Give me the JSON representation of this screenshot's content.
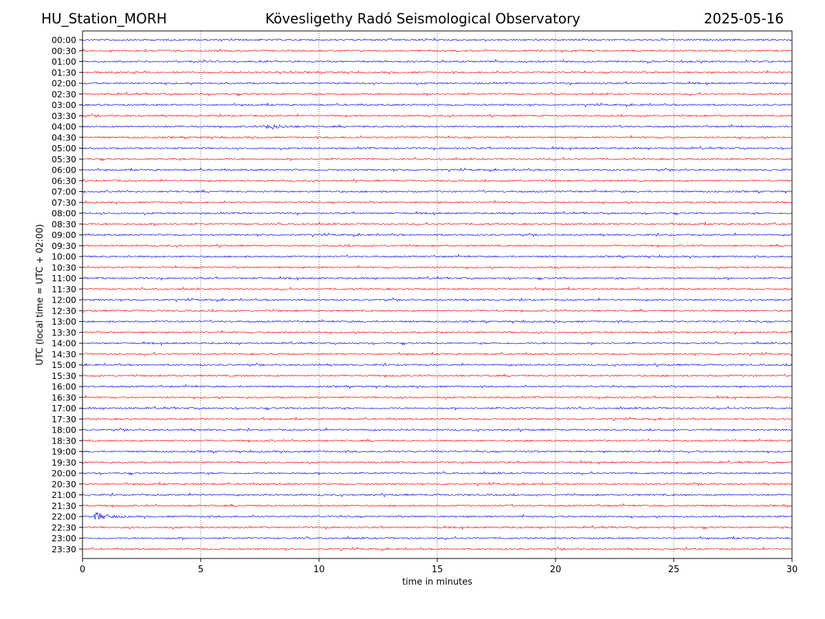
{
  "header": {
    "station": "HU_Station_MORH",
    "observatory": "Kövesligethy Radó Seismological Observatory",
    "date": "2025-05-16"
  },
  "chart_data": {
    "type": "line",
    "title": "Kövesligethy Radó Seismological Observatory",
    "xlabel": "time in minutes",
    "ylabel": "UTC (local time = UTC + 02:00)",
    "xlim": [
      0,
      30
    ],
    "x_ticks": [
      0,
      5,
      10,
      15,
      20,
      25,
      30
    ],
    "grid": "vertical dotted lines at x ticks",
    "row_labels": [
      "00:00",
      "00:30",
      "01:00",
      "01:30",
      "02:00",
      "02:30",
      "03:00",
      "03:30",
      "04:00",
      "04:30",
      "05:00",
      "05:30",
      "06:00",
      "06:30",
      "07:00",
      "07:30",
      "08:00",
      "08:30",
      "09:00",
      "09:30",
      "10:00",
      "10:30",
      "11:00",
      "11:30",
      "12:00",
      "12:30",
      "13:00",
      "13:30",
      "14:00",
      "14:30",
      "15:00",
      "15:30",
      "16:00",
      "16:30",
      "17:00",
      "17:30",
      "18:00",
      "18:30",
      "19:00",
      "19:30",
      "20:00",
      "20:30",
      "21:00",
      "21:30",
      "22:00",
      "22:30",
      "23:00",
      "23:30"
    ],
    "colors": [
      "#0000ff",
      "#ff0000"
    ],
    "events": [
      {
        "row": "04:00",
        "start_min": 7.8,
        "end_min": 9.6,
        "amplitude": "moderate"
      },
      {
        "row": "22:00",
        "start_min": 0.5,
        "end_min": 2.0,
        "amplitude": "high"
      }
    ]
  }
}
